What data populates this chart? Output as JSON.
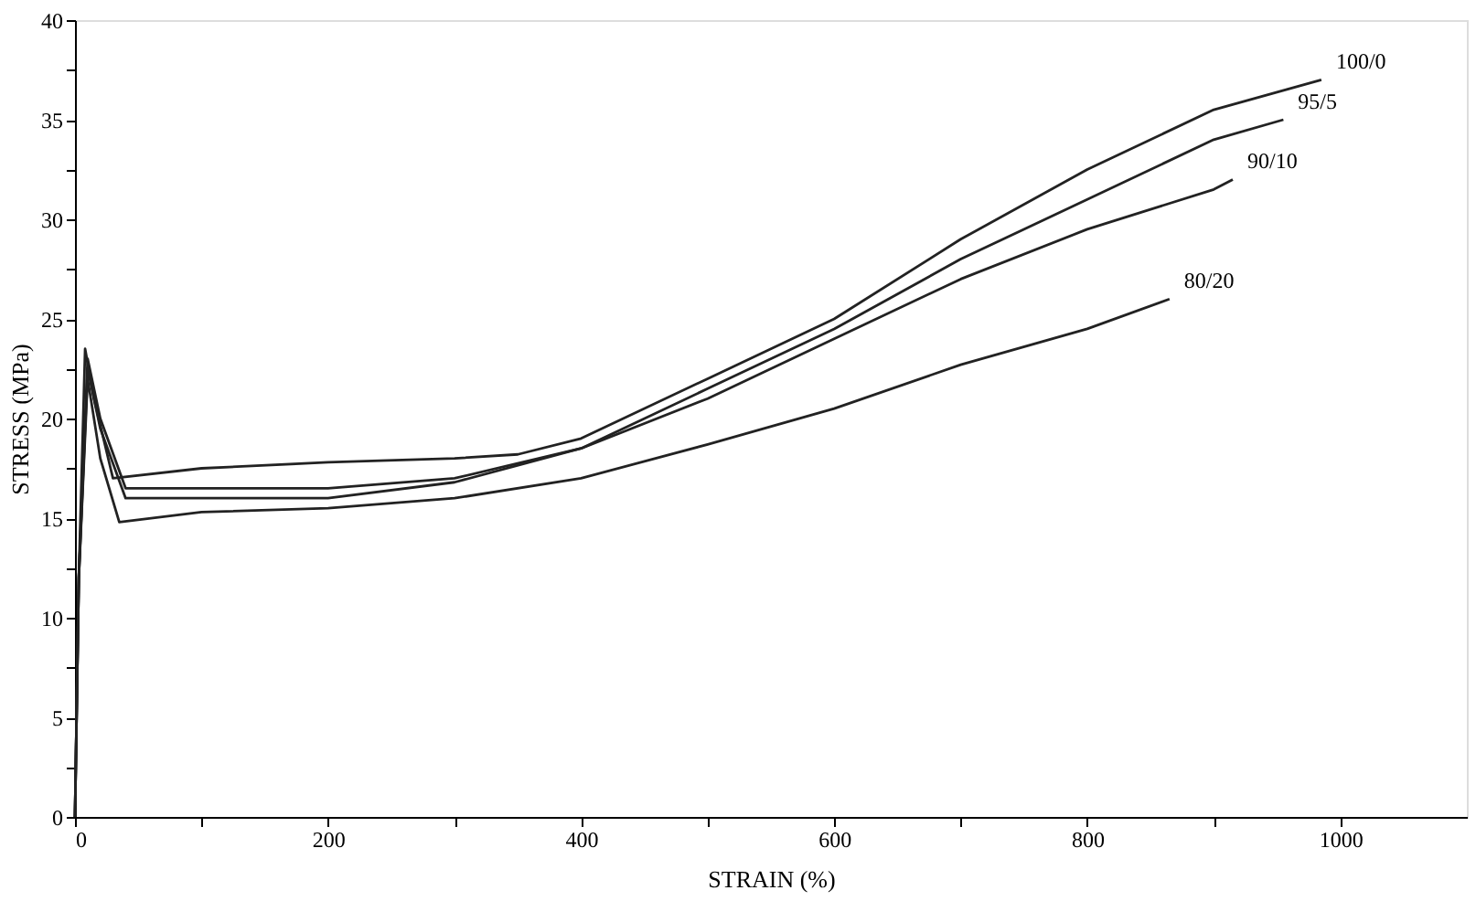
{
  "chart_data": {
    "type": "line",
    "xlabel": "STRAIN (%)",
    "ylabel": "STRESS (MPa)",
    "xlim": [
      0,
      1100
    ],
    "ylim": [
      0,
      40
    ],
    "xticks": [
      0,
      {
        "value": 100,
        "label": null
      },
      200,
      {
        "value": 300,
        "label": null
      },
      400,
      {
        "value": 500,
        "label": null
      },
      600,
      {
        "value": 700,
        "label": null
      },
      800,
      {
        "value": 900,
        "label": null
      },
      1000
    ],
    "yticks": [
      0,
      {
        "value": 2.5,
        "label": null
      },
      5,
      {
        "value": 7.5,
        "label": null
      },
      10,
      {
        "value": 12.5,
        "label": null
      },
      15,
      {
        "value": 17.5,
        "label": null
      },
      20,
      {
        "value": 22.5,
        "label": null
      },
      25,
      {
        "value": 27.5,
        "label": null
      },
      30,
      {
        "value": 32.5,
        "label": null
      },
      35,
      {
        "value": 37.5,
        "label": null
      },
      40
    ],
    "grid": false,
    "legend": false,
    "line_style": "solid",
    "marker": "none",
    "series": [
      {
        "name": "100/0",
        "color": "#222222",
        "x": [
          0,
          3,
          8,
          15,
          30,
          100,
          200,
          300,
          350,
          400,
          500,
          600,
          700,
          800,
          900,
          985
        ],
        "values": [
          0,
          12,
          23.5,
          21,
          17,
          17.5,
          17.8,
          18,
          18.2,
          19,
          22,
          25,
          29,
          32.5,
          35.5,
          37
        ]
      },
      {
        "name": "95/5",
        "color": "#222222",
        "x": [
          0,
          3,
          10,
          20,
          40,
          100,
          200,
          300,
          400,
          500,
          600,
          700,
          800,
          900,
          955
        ],
        "values": [
          0,
          12,
          23,
          20,
          16.5,
          16.5,
          16.5,
          17,
          18.5,
          21.5,
          24.5,
          28,
          31,
          34,
          35
        ]
      },
      {
        "name": "90/10",
        "color": "#222222",
        "x": [
          0,
          3,
          10,
          20,
          40,
          100,
          200,
          300,
          400,
          500,
          600,
          700,
          800,
          900,
          915
        ],
        "values": [
          0,
          12,
          22.5,
          19.5,
          16,
          16,
          16,
          16.8,
          18.5,
          21,
          24,
          27,
          29.5,
          31.5,
          32
        ]
      },
      {
        "name": "80/20",
        "color": "#222222",
        "x": [
          0,
          3,
          10,
          20,
          35,
          100,
          200,
          300,
          400,
          500,
          600,
          700,
          800,
          865
        ],
        "values": [
          0,
          12,
          22,
          18,
          14.8,
          15.3,
          15.5,
          16,
          17,
          18.7,
          20.5,
          22.7,
          24.5,
          26
        ]
      }
    ]
  }
}
